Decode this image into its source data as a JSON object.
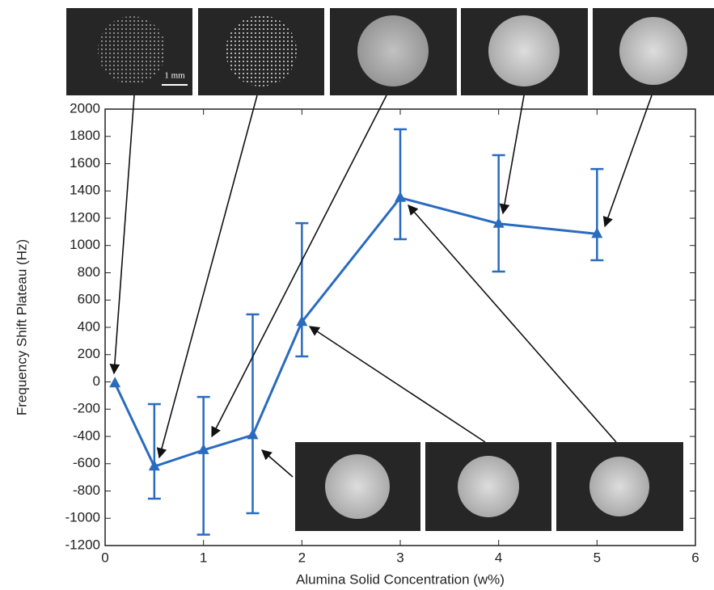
{
  "chart_data": {
    "type": "line",
    "xlabel": "Alumina Solid Concentration (w%)",
    "ylabel": "Frequency Shift Plateau (Hz)",
    "scale_bar": "1 mm",
    "x": [
      0.1,
      0.5,
      1,
      1.5,
      2,
      3,
      4,
      5
    ],
    "series": [
      {
        "color": "#2a6bbf",
        "values": [
          -10,
          -620,
          -500,
          -390,
          440,
          1350,
          1160,
          1085
        ],
        "lower": [
          null,
          -856,
          -1120,
          -963,
          187,
          1046,
          809,
          892
        ],
        "upper": [
          null,
          -163,
          -110,
          495,
          1164,
          1852,
          1662,
          1561
        ]
      }
    ],
    "xlim": [
      0,
      6
    ],
    "xticks": [
      0,
      1,
      2,
      3,
      4,
      5,
      6
    ],
    "ylim": [
      -1200,
      2000
    ],
    "yticks": [
      -1200,
      -1000,
      -800,
      -600,
      -400,
      -200,
      0,
      200,
      400,
      600,
      800,
      1000,
      1200,
      1400,
      1600,
      1800,
      2000
    ]
  }
}
